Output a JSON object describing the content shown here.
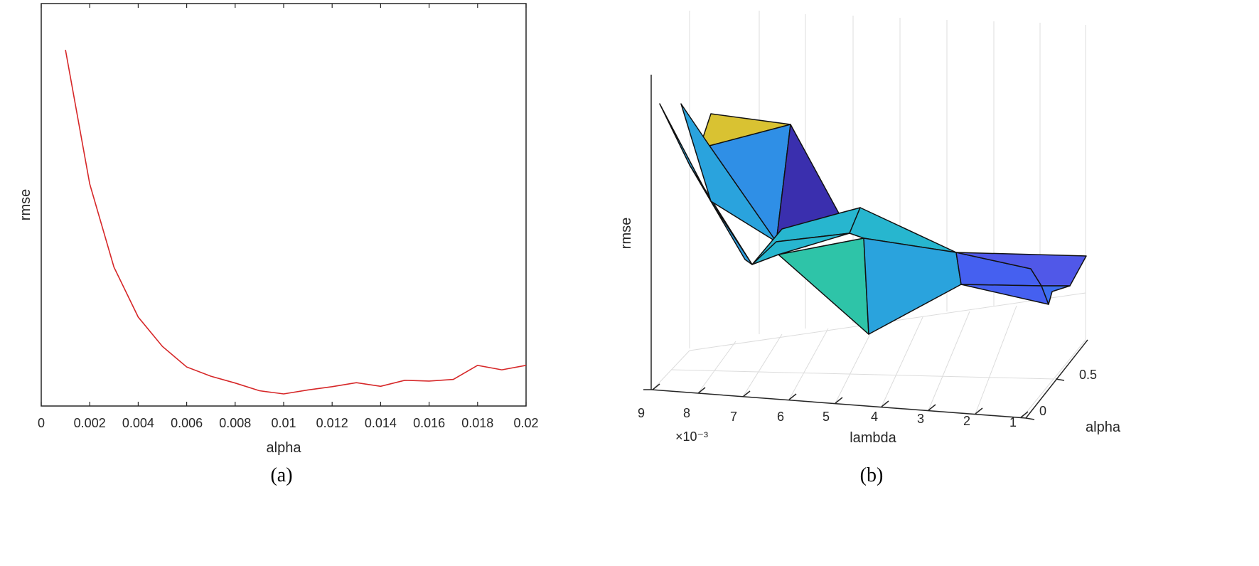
{
  "chart_data": [
    {
      "type": "line",
      "panel_label": "(a)",
      "xlabel": "alpha",
      "ylabel": "rmse",
      "xlim": [
        0,
        0.02
      ],
      "ylim": [
        0,
        1
      ],
      "x_ticks": [
        "0",
        "0.002",
        "0.004",
        "0.006",
        "0.008",
        "0.01",
        "0.012",
        "0.014",
        "0.016",
        "0.018",
        "0.02"
      ],
      "y_ticks_labeled": false,
      "grid": false,
      "line_color": "#d62728",
      "series": [
        {
          "x": [
            0.001,
            0.002,
            0.003,
            0.004,
            0.005,
            0.006,
            0.007,
            0.008,
            0.009,
            0.01,
            0.011,
            0.012,
            0.013,
            0.014,
            0.015,
            0.016,
            0.017,
            0.018,
            0.019,
            0.02
          ],
          "y": [
            0.885,
            0.552,
            0.345,
            0.221,
            0.148,
            0.097,
            0.074,
            0.057,
            0.038,
            0.03,
            0.04,
            0.048,
            0.058,
            0.049,
            0.064,
            0.062,
            0.066,
            0.101,
            0.09,
            0.101
          ]
        }
      ]
    },
    {
      "type": "surface3d",
      "panel_label": "(b)",
      "xlabel": "lambda",
      "ylabel": "alpha",
      "zlabel": "rmse",
      "x_multiplier": "×10⁻³",
      "x_ticks": [
        "9",
        "8",
        "7",
        "6",
        "5",
        "4",
        "3",
        "2",
        "1"
      ],
      "y_ticks": [
        "0",
        "0.5"
      ],
      "z_ticks_labeled": false,
      "grid": true,
      "colormap": "parula",
      "colors": {
        "yellow": "#d9c232",
        "blue": "#2f8fe6",
        "light_blue": "#2aa3dd",
        "indigo": "#3a2fae",
        "teal": "#2ec4a8",
        "cyan": "#27b6cf",
        "royal": "#4560f0",
        "violet": "#5058e8"
      }
    }
  ]
}
